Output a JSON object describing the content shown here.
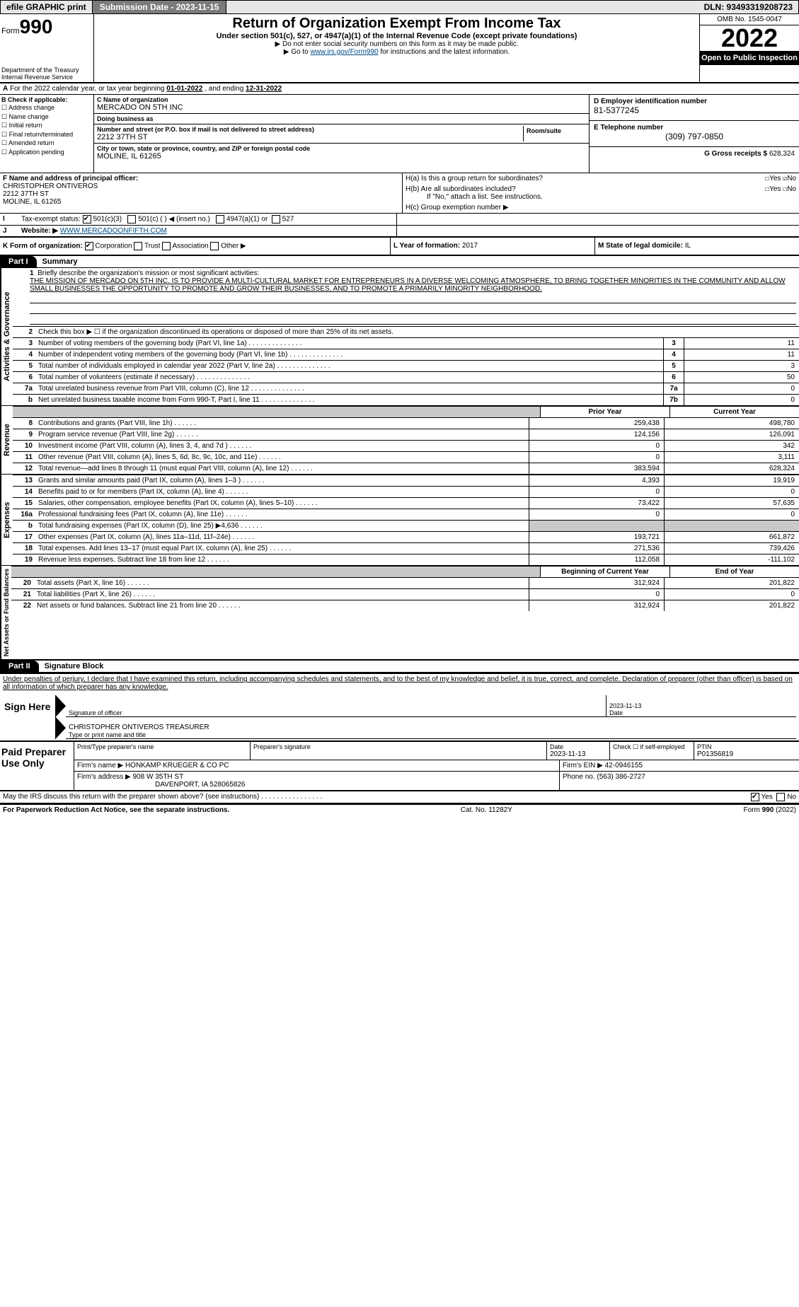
{
  "topbar": {
    "efile": "efile GRAPHIC print",
    "submission_label": "Submission Date - 2023-11-15",
    "dln": "DLN: 93493319208723"
  },
  "header": {
    "form_word": "Form",
    "form_num": "990",
    "dept": "Department of the Treasury",
    "irs": "Internal Revenue Service",
    "title": "Return of Organization Exempt From Income Tax",
    "sub": "Under section 501(c), 527, or 4947(a)(1) of the Internal Revenue Code (except private foundations)",
    "warn": "▶ Do not enter social security numbers on this form as it may be made public.",
    "goto_pre": "▶ Go to ",
    "goto_link": "www.irs.gov/Form990",
    "goto_post": " for instructions and the latest information.",
    "omb": "OMB No. 1545-0047",
    "year": "2022",
    "open": "Open to Public Inspection"
  },
  "A": {
    "text_pre": "For the 2022 calendar year, or tax year beginning ",
    "begin": "01-01-2022",
    "mid": " , and ending ",
    "end": "12-31-2022"
  },
  "B": {
    "label": "B Check if applicable:",
    "opts": [
      "Address change",
      "Name change",
      "Initial return",
      "Final return/terminated",
      "Amended return",
      "Application pending"
    ]
  },
  "C": {
    "name_lab": "C Name of organization",
    "name": "MERCADO ON 5TH INC",
    "dba_lab": "Doing business as",
    "dba": "",
    "street_lab": "Number and street (or P.O. box if mail is not delivered to street address)",
    "street": "2212 37TH ST",
    "room_lab": "Room/suite",
    "city_lab": "City or town, state or province, country, and ZIP or foreign postal code",
    "city": "MOLINE, IL  61265"
  },
  "D": {
    "ein_lab": "D Employer identification number",
    "ein": "81-5377245",
    "phone_lab": "E Telephone number",
    "phone": "(309) 797-0850",
    "gross_lab": "G Gross receipts $",
    "gross": "628,324"
  },
  "F": {
    "lab": "F Name and address of principal officer:",
    "name": "CHRISTOPHER ONTIVEROS",
    "addr1": "2212 37TH ST",
    "addr2": "MOLINE, IL  61265"
  },
  "H": {
    "a": "H(a)  Is this a group return for subordinates?",
    "a_yes": "Yes",
    "a_no": "No",
    "b": "H(b)  Are all subordinates included?",
    "b_yes": "Yes",
    "b_no": "No",
    "b_note": "If \"No,\" attach a list. See instructions.",
    "c": "H(c)  Group exemption number ▶"
  },
  "I": {
    "lab": "Tax-exempt status:",
    "o1": "501(c)(3)",
    "o2": "501(c) (   ) ◀ (insert no.)",
    "o3": "4947(a)(1) or",
    "o4": "527"
  },
  "J": {
    "lab": "Website: ▶",
    "val": "WWW.MERCADOONFIFTH.COM"
  },
  "K": {
    "lab": "K Form of organization:",
    "o1": "Corporation",
    "o2": "Trust",
    "o3": "Association",
    "o4": "Other ▶"
  },
  "L": {
    "lab": "L Year of formation:",
    "val": "2017"
  },
  "M": {
    "lab": "M State of legal domicile:",
    "val": "IL"
  },
  "partI": {
    "part": "Part I",
    "title": "Summary",
    "tab_ag": "Activities & Governance",
    "tab_rev": "Revenue",
    "tab_exp": "Expenses",
    "tab_na": "Net Assets or Fund Balances",
    "q1": "Briefly describe the organization's mission or most significant activities:",
    "mission": "THE MISSION OF MERCADO ON 5TH INC. IS TO PROVIDE A MULTI-CULTURAL MARKET FOR ENTREPRENEURS IN A DIVERSE WELCOMING ATMOSPHERE, TO BRING TOGETHER MINORITIES IN THE COMMUNITY AND ALLOW SMALL BUSINESSES THE OPPORTUNITY TO PROMOTE AND GROW THEIR BUSINESSES, AND TO PROMOTE A PRIMARILY MINORITY NEIGHBORHOOD.",
    "q2": "Check this box ▶ ☐ if the organization discontinued its operations or disposed of more than 25% of its net assets.",
    "rows_ag": [
      {
        "n": "3",
        "t": "Number of voting members of the governing body (Part VI, line 1a)",
        "c": "3",
        "v": "11"
      },
      {
        "n": "4",
        "t": "Number of independent voting members of the governing body (Part VI, line 1b)",
        "c": "4",
        "v": "11"
      },
      {
        "n": "5",
        "t": "Total number of individuals employed in calendar year 2022 (Part V, line 2a)",
        "c": "5",
        "v": "3"
      },
      {
        "n": "6",
        "t": "Total number of volunteers (estimate if necessary)",
        "c": "6",
        "v": "50"
      },
      {
        "n": "7a",
        "t": "Total unrelated business revenue from Part VIII, column (C), line 12",
        "c": "7a",
        "v": "0"
      },
      {
        "n": "b",
        "t": "Net unrelated business taxable income from Form 990-T, Part I, line 11",
        "c": "7b",
        "v": "0"
      }
    ],
    "py_lab": "Prior Year",
    "cy_lab": "Current Year",
    "rows_rev": [
      {
        "n": "8",
        "t": "Contributions and grants (Part VIII, line 1h)",
        "py": "259,438",
        "cy": "498,780"
      },
      {
        "n": "9",
        "t": "Program service revenue (Part VIII, line 2g)",
        "py": "124,156",
        "cy": "126,091"
      },
      {
        "n": "10",
        "t": "Investment income (Part VIII, column (A), lines 3, 4, and 7d )",
        "py": "0",
        "cy": "342"
      },
      {
        "n": "11",
        "t": "Other revenue (Part VIII, column (A), lines 5, 6d, 8c, 9c, 10c, and 11e)",
        "py": "0",
        "cy": "3,111"
      },
      {
        "n": "12",
        "t": "Total revenue—add lines 8 through 11 (must equal Part VIII, column (A), line 12)",
        "py": "383,594",
        "cy": "628,324"
      }
    ],
    "rows_exp": [
      {
        "n": "13",
        "t": "Grants and similar amounts paid (Part IX, column (A), lines 1–3 )",
        "py": "4,393",
        "cy": "19,919"
      },
      {
        "n": "14",
        "t": "Benefits paid to or for members (Part IX, column (A), line 4)",
        "py": "0",
        "cy": "0"
      },
      {
        "n": "15",
        "t": "Salaries, other compensation, employee benefits (Part IX, column (A), lines 5–10)",
        "py": "73,422",
        "cy": "57,635"
      },
      {
        "n": "16a",
        "t": "Professional fundraising fees (Part IX, column (A), line 11e)",
        "py": "0",
        "cy": "0"
      },
      {
        "n": "b",
        "t": "Total fundraising expenses (Part IX, column (D), line 25) ▶4,636",
        "py": "",
        "cy": "",
        "grey": true
      },
      {
        "n": "17",
        "t": "Other expenses (Part IX, column (A), lines 11a–11d, 11f–24e)",
        "py": "193,721",
        "cy": "661,872"
      },
      {
        "n": "18",
        "t": "Total expenses. Add lines 13–17 (must equal Part IX, column (A), line 25)",
        "py": "271,536",
        "cy": "739,426"
      },
      {
        "n": "19",
        "t": "Revenue less expenses. Subtract line 18 from line 12",
        "py": "112,058",
        "cy": "-111,102"
      }
    ],
    "by_lab": "Beginning of Current Year",
    "ey_lab": "End of Year",
    "rows_na": [
      {
        "n": "20",
        "t": "Total assets (Part X, line 16)",
        "py": "312,924",
        "cy": "201,822"
      },
      {
        "n": "21",
        "t": "Total liabilities (Part X, line 26)",
        "py": "0",
        "cy": "0"
      },
      {
        "n": "22",
        "t": "Net assets or fund balances. Subtract line 21 from line 20",
        "py": "312,924",
        "cy": "201,822"
      }
    ]
  },
  "partII": {
    "part": "Part II",
    "title": "Signature Block",
    "decl": "Under penalties of perjury, I declare that I have examined this return, including accompanying schedules and statements, and to the best of my knowledge and belief, it is true, correct, and complete. Declaration of preparer (other than officer) is based on all information of which preparer has any knowledge.",
    "sign_here": "Sign Here",
    "sig_officer": "Signature of officer",
    "sig_date": "2023-11-13",
    "date_lab": "Date",
    "name_title": "CHRISTOPHER ONTIVEROS TREASURER",
    "name_title_lab": "Type or print name and title",
    "paid": "Paid Preparer Use Only",
    "p_name_lab": "Print/Type preparer's name",
    "p_sig_lab": "Preparer's signature",
    "p_date_lab": "Date",
    "p_date": "2023-11-13",
    "p_check_lab": "Check ☐ if self-employed",
    "p_ptin_lab": "PTIN",
    "p_ptin": "P01356819",
    "firm_name_lab": "Firm's name    ▶",
    "firm_name": "HONKAMP KRUEGER & CO PC",
    "firm_ein_lab": "Firm's EIN ▶",
    "firm_ein": "42-0946155",
    "firm_addr_lab": "Firm's address ▶",
    "firm_addr1": "908 W 35TH ST",
    "firm_addr2": "DAVENPORT, IA  528065826",
    "firm_phone_lab": "Phone no.",
    "firm_phone": "(563) 386-2727",
    "discuss": "May the IRS discuss this return with the preparer shown above? (see instructions)",
    "d_yes": "Yes",
    "d_no": "No"
  },
  "footer": {
    "pra": "For Paperwork Reduction Act Notice, see the separate instructions.",
    "cat": "Cat. No. 11282Y",
    "form": "Form 990 (2022)"
  }
}
